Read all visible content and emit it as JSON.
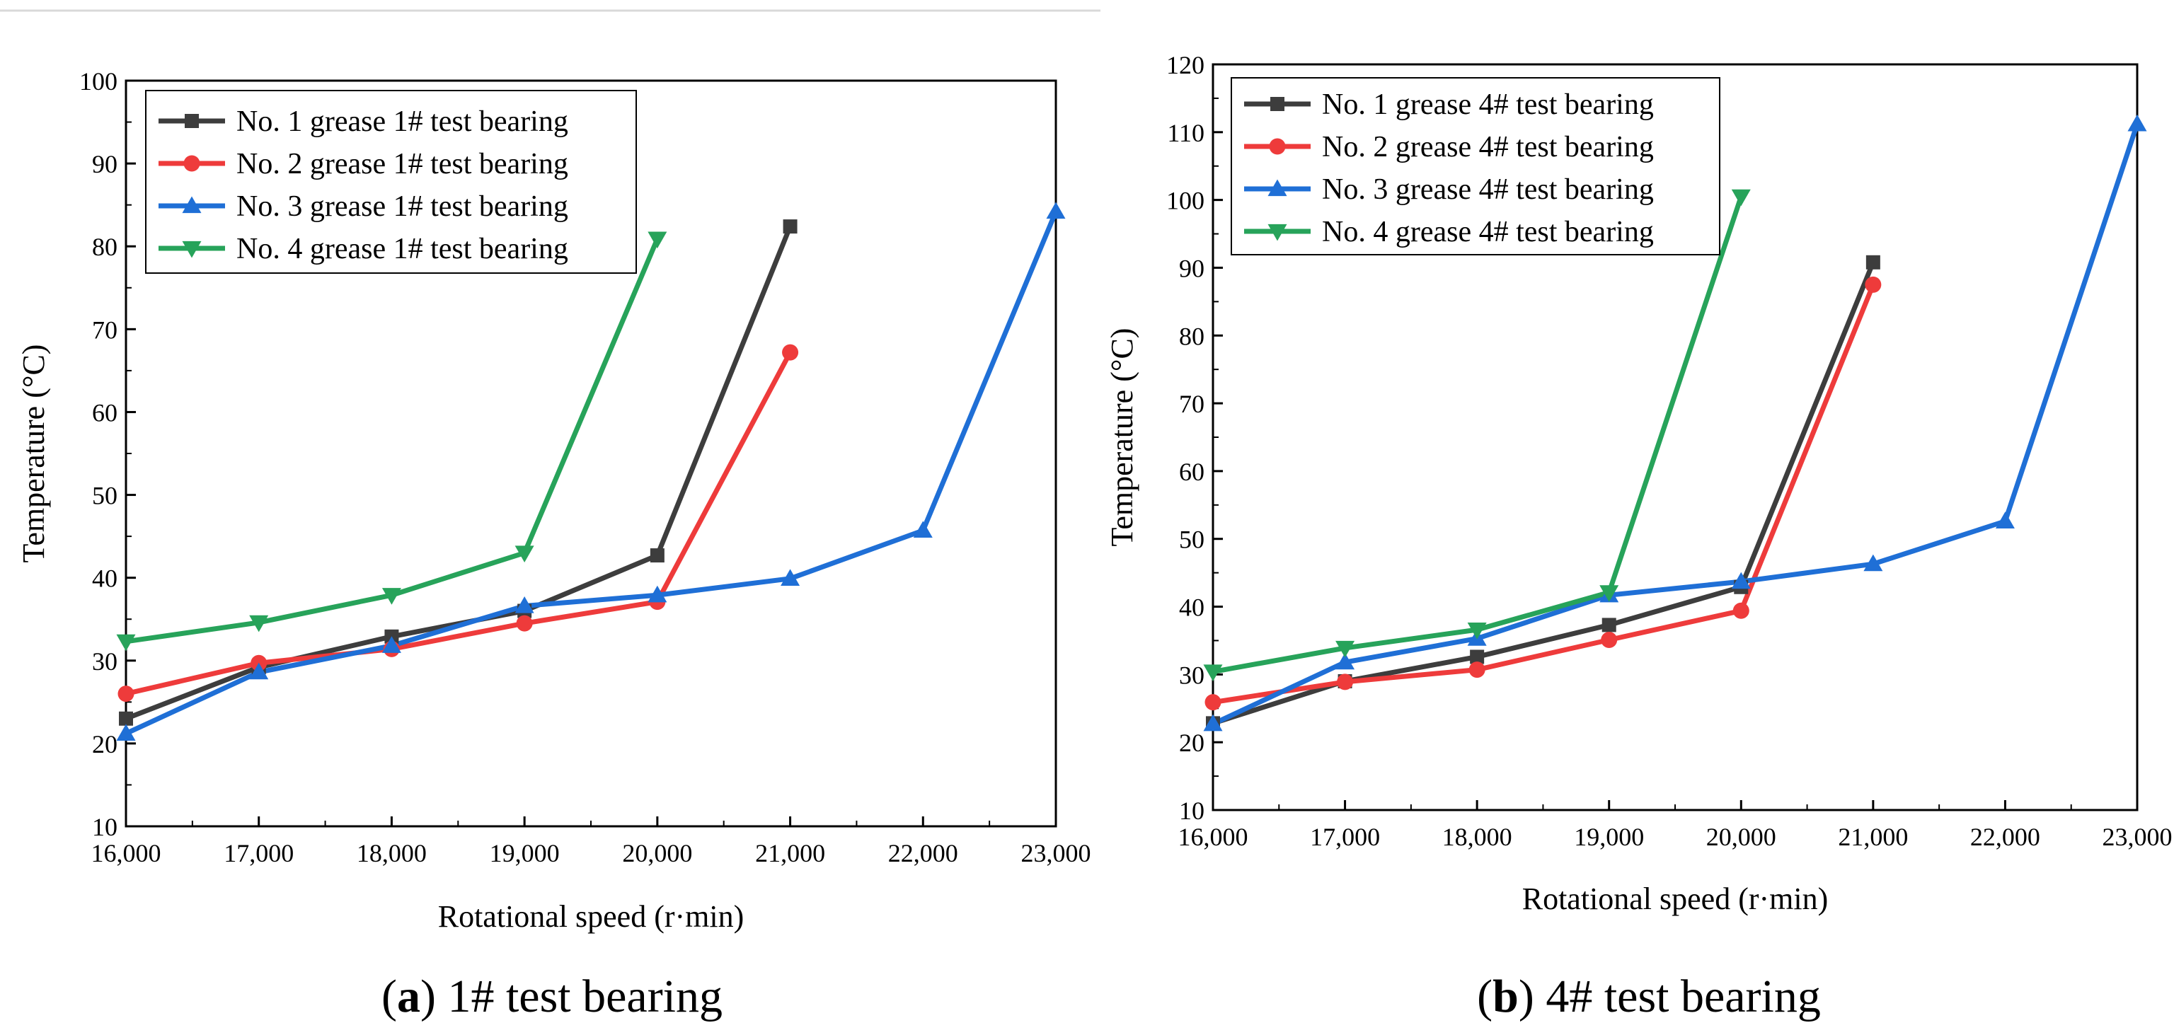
{
  "chart_data": [
    {
      "type": "line",
      "caption_letter": "a",
      "caption_text": "1# test bearing",
      "xlabel": "Rotational speed (r·min)",
      "ylabel": "Temperature (°C)",
      "xlim": [
        16000,
        23000
      ],
      "ylim": [
        10,
        100
      ],
      "xticks": [
        16000,
        17000,
        18000,
        19000,
        20000,
        21000,
        22000,
        23000
      ],
      "xtick_labels": [
        "16,000",
        "17,000",
        "18,000",
        "19,000",
        "20,000",
        "21,000",
        "22,000",
        "23,000"
      ],
      "yticks": [
        10,
        20,
        30,
        40,
        50,
        60,
        70,
        80,
        90,
        100
      ],
      "ytick_labels": [
        "10",
        "20",
        "30",
        "40",
        "50",
        "60",
        "70",
        "80",
        "90",
        "100"
      ],
      "legend_position": "top-left",
      "series": [
        {
          "name": "No. 1 grease 1# test bearing",
          "color": "#3d3d3d",
          "marker": "square",
          "x": [
            16000,
            17000,
            18000,
            19000,
            20000,
            21000
          ],
          "y": [
            23.0,
            29.2,
            32.9,
            36.0,
            42.7,
            82.4
          ]
        },
        {
          "name": "No. 2 grease 1# test bearing",
          "color": "#ee3b3b",
          "marker": "circle",
          "x": [
            16000,
            17000,
            18000,
            19000,
            20000,
            21000
          ],
          "y": [
            26.0,
            29.7,
            31.4,
            34.5,
            37.1,
            67.2
          ]
        },
        {
          "name": "No. 3 grease 1# test bearing",
          "color": "#1f6fd6",
          "marker": "triangle-up",
          "x": [
            16000,
            17000,
            18000,
            19000,
            20000,
            21000,
            22000,
            23000
          ],
          "y": [
            21.2,
            28.6,
            31.8,
            36.6,
            37.9,
            39.9,
            45.7,
            84.2
          ]
        },
        {
          "name": "No. 4 grease 1# test bearing",
          "color": "#27a35a",
          "marker": "triangle-down",
          "x": [
            16000,
            17000,
            18000,
            19000,
            20000
          ],
          "y": [
            32.3,
            34.6,
            37.9,
            43.0,
            80.9
          ]
        }
      ]
    },
    {
      "type": "line",
      "caption_letter": "b",
      "caption_text": "4# test bearing",
      "xlabel": "Rotational speed (r·min)",
      "ylabel": "Temperature (°C)",
      "xlim": [
        16000,
        23000
      ],
      "ylim": [
        10,
        120
      ],
      "xticks": [
        16000,
        17000,
        18000,
        19000,
        20000,
        21000,
        22000,
        23000
      ],
      "xtick_labels": [
        "16,000",
        "17,000",
        "18,000",
        "19,000",
        "20,000",
        "21,000",
        "22,000",
        "23,000"
      ],
      "yticks": [
        10,
        20,
        30,
        40,
        50,
        60,
        70,
        80,
        90,
        100,
        110,
        120
      ],
      "ytick_labels": [
        "10",
        "20",
        "30",
        "40",
        "50",
        "60",
        "70",
        "80",
        "90",
        "100",
        "110",
        "120"
      ],
      "legend_position": "top-left",
      "series": [
        {
          "name": "No. 1 grease 4# test bearing",
          "color": "#3d3d3d",
          "marker": "square",
          "x": [
            16000,
            17000,
            18000,
            19000,
            20000,
            21000
          ],
          "y": [
            22.8,
            29.0,
            32.6,
            37.3,
            42.9,
            90.8
          ]
        },
        {
          "name": "No. 2 grease 4# test bearing",
          "color": "#ee3b3b",
          "marker": "circle",
          "x": [
            16000,
            17000,
            18000,
            19000,
            20000,
            21000
          ],
          "y": [
            25.9,
            28.9,
            30.7,
            35.1,
            39.4,
            87.5
          ]
        },
        {
          "name": "No. 3 grease 4# test bearing",
          "color": "#1f6fd6",
          "marker": "triangle-up",
          "x": [
            16000,
            17000,
            18000,
            19000,
            20000,
            21000,
            22000,
            23000
          ],
          "y": [
            22.7,
            31.8,
            35.3,
            41.7,
            43.7,
            46.3,
            52.6,
            111.2
          ]
        },
        {
          "name": "No. 4 grease 4# test bearing",
          "color": "#27a35a",
          "marker": "triangle-down",
          "x": [
            16000,
            17000,
            18000,
            19000,
            20000
          ],
          "y": [
            30.4,
            33.9,
            36.6,
            42.1,
            100.5
          ]
        }
      ]
    }
  ]
}
